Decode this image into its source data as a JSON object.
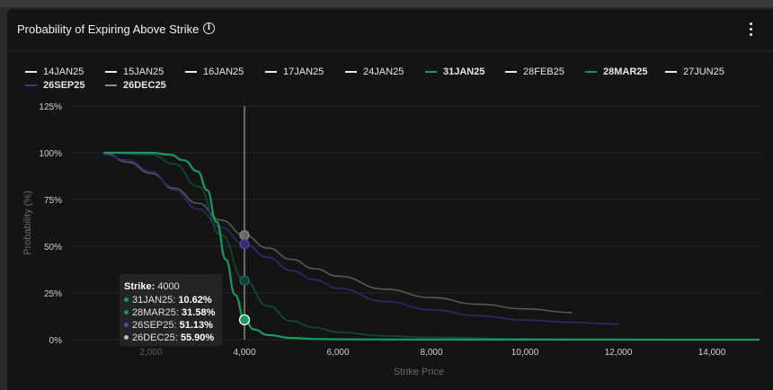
{
  "header": {
    "title": "Probability of Expiring Above Strike",
    "info_icon": "info-circle-icon",
    "menu_icon": "more-vertical-icon"
  },
  "legend": [
    {
      "label": "14JAN25",
      "color": "#e8e8e8",
      "bold": false
    },
    {
      "label": "15JAN25",
      "color": "#e8e8e8",
      "bold": false
    },
    {
      "label": "16JAN25",
      "color": "#e8e8e8",
      "bold": false
    },
    {
      "label": "17JAN25",
      "color": "#e8e8e8",
      "bold": false
    },
    {
      "label": "24JAN25",
      "color": "#e8e8e8",
      "bold": false
    },
    {
      "label": "31JAN25",
      "color": "#1b9a5e",
      "bold": true
    },
    {
      "label": "28FEB25",
      "color": "#e8e8e8",
      "bold": false
    },
    {
      "label": "28MAR25",
      "color": "#178a78",
      "bold": true
    },
    {
      "label": "27JUN25",
      "color": "#e8e8e8",
      "bold": false
    },
    {
      "label": "26SEP25",
      "color": "#3a3592",
      "bold": true
    },
    {
      "label": "26DEC25",
      "color": "#8e8e8e",
      "bold": true
    }
  ],
  "tooltip": {
    "strike_label": "Strike:",
    "strike_value": "4000",
    "rows": [
      {
        "name": "31JAN25:",
        "value": "10.62%",
        "color": "#1b9a5e"
      },
      {
        "name": "28MAR25:",
        "value": "31.58%",
        "color": "#178a78"
      },
      {
        "name": "26SEP25:",
        "value": "51.13%",
        "color": "#4a44b0"
      },
      {
        "name": "26DEC25:",
        "value": "55.90%",
        "color": "#bdbdbd"
      }
    ]
  },
  "chart_data": {
    "type": "line",
    "title": "Probability of Expiring Above Strike",
    "xlabel": "Strike Price",
    "ylabel": "Probability (%)",
    "xlim": [
      500,
      15000
    ],
    "ylim": [
      0,
      125
    ],
    "x_ticks": [
      2000,
      4000,
      6000,
      8000,
      10000,
      12000,
      14000
    ],
    "x_tick_labels": [
      "2,000",
      "4,000",
      "6,000",
      "8,000",
      "10,000",
      "12,000",
      "14,000"
    ],
    "y_ticks": [
      0,
      25,
      50,
      75,
      100,
      125
    ],
    "y_tick_labels": [
      "0%",
      "25%",
      "50%",
      "75%",
      "100%",
      "125%"
    ],
    "grid": true,
    "legend_position": "top",
    "crosshair_x": 4000,
    "series": [
      {
        "name": "26DEC25",
        "color": "#585858",
        "width": 1.6,
        "points": [
          [
            1000,
            100
          ],
          [
            1500,
            95
          ],
          [
            2000,
            89
          ],
          [
            2500,
            81
          ],
          [
            3000,
            73
          ],
          [
            3500,
            64
          ],
          [
            4000,
            55.9
          ],
          [
            4500,
            49
          ],
          [
            5000,
            43
          ],
          [
            5500,
            38
          ],
          [
            6000,
            34
          ],
          [
            7000,
            27
          ],
          [
            8000,
            22.5
          ],
          [
            9000,
            19
          ],
          [
            10000,
            16.5
          ],
          [
            11000,
            14.5
          ]
        ]
      },
      {
        "name": "26SEP25",
        "color": "#2c2a70",
        "width": 1.6,
        "points": [
          [
            1000,
            99
          ],
          [
            1500,
            96
          ],
          [
            2000,
            90
          ],
          [
            2500,
            80
          ],
          [
            3000,
            70
          ],
          [
            3500,
            60
          ],
          [
            4000,
            51.13
          ],
          [
            4500,
            44
          ],
          [
            5000,
            37
          ],
          [
            5500,
            32
          ],
          [
            6000,
            27.5
          ],
          [
            7000,
            20.5
          ],
          [
            8000,
            16
          ],
          [
            9000,
            12.8
          ],
          [
            10000,
            10.5
          ],
          [
            11000,
            9.3
          ],
          [
            12000,
            8.3
          ]
        ]
      },
      {
        "name": "28MAR25",
        "color": "#0f4a40",
        "width": 1.6,
        "points": [
          [
            1000,
            100
          ],
          [
            2000,
            99
          ],
          [
            2500,
            94
          ],
          [
            3000,
            82
          ],
          [
            3500,
            56
          ],
          [
            4000,
            31.58
          ],
          [
            4500,
            18
          ],
          [
            5000,
            10
          ],
          [
            5500,
            6.5
          ],
          [
            6000,
            4
          ],
          [
            7000,
            2
          ],
          [
            8000,
            1.2
          ],
          [
            10000,
            0.5
          ],
          [
            12000,
            0.2
          ],
          [
            15000,
            0
          ]
        ]
      },
      {
        "name": "31JAN25",
        "color": "#1b9a5e",
        "width": 2.2,
        "points": [
          [
            1000,
            100
          ],
          [
            1500,
            100
          ],
          [
            2000,
            100
          ],
          [
            2400,
            99
          ],
          [
            2700,
            96
          ],
          [
            3000,
            90
          ],
          [
            3200,
            80
          ],
          [
            3400,
            63
          ],
          [
            3600,
            43
          ],
          [
            3800,
            24
          ],
          [
            4000,
            10.62
          ],
          [
            4200,
            5.5
          ],
          [
            4500,
            2.5
          ],
          [
            5000,
            0.9
          ],
          [
            5500,
            0.4
          ],
          [
            6000,
            0.2
          ],
          [
            8000,
            0.05
          ],
          [
            15000,
            0
          ]
        ]
      }
    ],
    "highlight_points": [
      {
        "series": "26DEC25",
        "x": 4000,
        "y": 55.9,
        "fill": "#6a6a6a",
        "stroke": "#8a8a8a",
        "r": 5
      },
      {
        "series": "26SEP25",
        "x": 4000,
        "y": 51.13,
        "fill": "#34306e",
        "stroke": "#4a44b0",
        "r": 5
      },
      {
        "series": "28MAR25",
        "x": 4000,
        "y": 31.58,
        "fill": "#123f38",
        "stroke": "#1e6a5c",
        "r": 5
      },
      {
        "series": "31JAN25",
        "x": 4000,
        "y": 10.62,
        "fill": "#1b9a5e",
        "stroke": "#ffffff",
        "r": 5.5
      }
    ]
  }
}
